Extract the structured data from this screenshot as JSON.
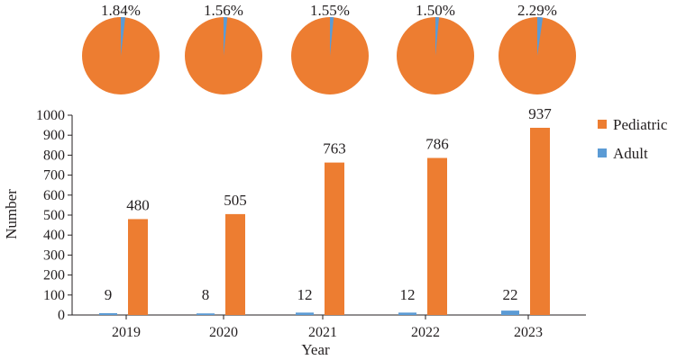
{
  "chart_data": {
    "type": "bar",
    "categories": [
      "2019",
      "2020",
      "2021",
      "2022",
      "2023"
    ],
    "series": [
      {
        "name": "Adult",
        "values": [
          9,
          8,
          12,
          12,
          22
        ],
        "color": "#5b9bd5"
      },
      {
        "name": "Pediatric",
        "values": [
          480,
          505,
          763,
          786,
          937
        ],
        "color": "#ed7d31"
      }
    ],
    "xlabel": "Year",
    "ylabel": "Number",
    "ylim": [
      0,
      1000
    ],
    "yticks": [
      0,
      100,
      200,
      300,
      400,
      500,
      600,
      700,
      800,
      900,
      1000
    ],
    "legend": {
      "placement": "right",
      "entries": [
        "Pediatric",
        "Adult"
      ]
    },
    "grid": false,
    "pies": [
      {
        "year": "2019",
        "label": "1.84%",
        "adult_percent": 1.84
      },
      {
        "year": "2020",
        "label": "1.56%",
        "adult_percent": 1.56
      },
      {
        "year": "2021",
        "label": "1.55%",
        "adult_percent": 1.55
      },
      {
        "year": "2022",
        "label": "1.50%",
        "adult_percent": 1.5
      },
      {
        "year": "2023",
        "label": "2.29%",
        "adult_percent": 2.29
      }
    ]
  }
}
